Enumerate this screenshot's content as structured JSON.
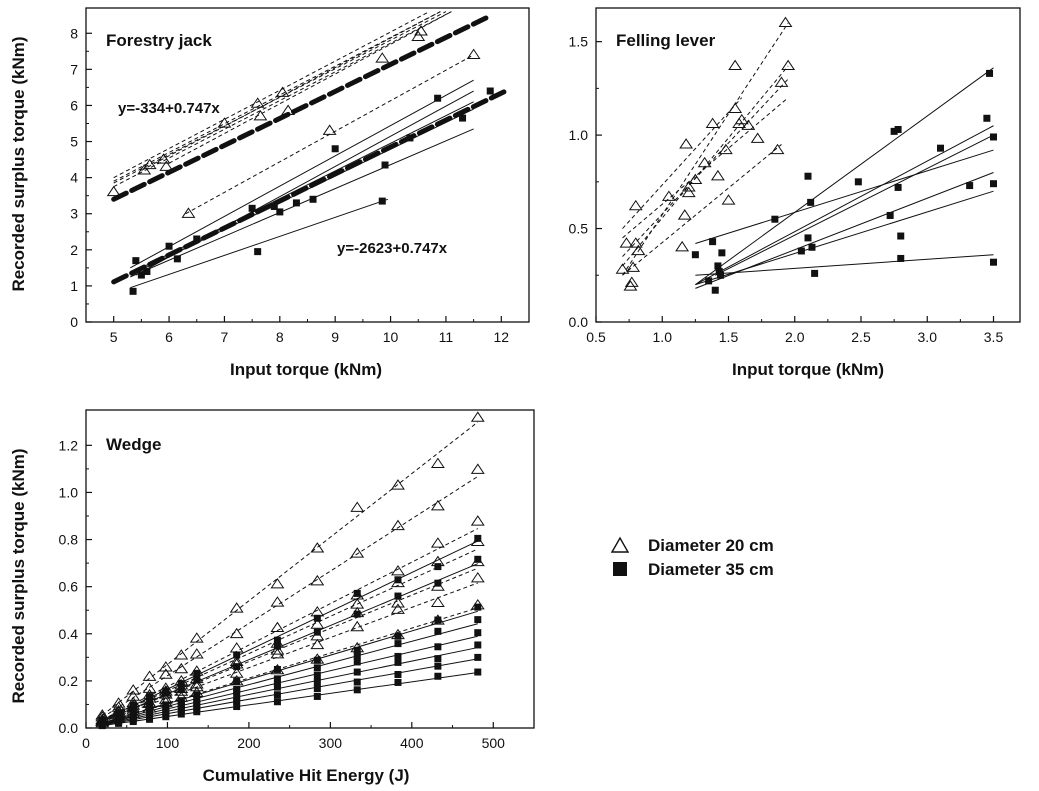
{
  "chart_data": [
    {
      "type": "scatter",
      "title": "Forestry jack",
      "xlabel": "Input torque (kNm)",
      "ylabel": "Recorded surplus torque (kNm)",
      "xlim": [
        4.5,
        12.5
      ],
      "ylim": [
        0,
        8.7
      ],
      "xticks": [
        "5",
        "6",
        "7",
        "8",
        "9",
        "10",
        "11",
        "12"
      ],
      "yticks": [
        "0",
        "1",
        "2",
        "3",
        "4",
        "5",
        "6",
        "7",
        "8"
      ],
      "annotations": [
        {
          "text": "y=-334+0.747x",
          "x": 5.1,
          "y": 6.3
        },
        {
          "text": "y=-2623+0.747x",
          "x": 9.0,
          "y": 1.9
        }
      ],
      "series": [
        {
          "name": "Diameter 20 cm",
          "marker": "open-triangle",
          "points": [
            [
              5.0,
              3.6
            ],
            [
              5.55,
              4.2
            ],
            [
              5.65,
              4.35
            ],
            [
              5.9,
              4.5
            ],
            [
              5.95,
              4.3
            ],
            [
              6.35,
              3.0
            ],
            [
              7.0,
              5.5
            ],
            [
              7.6,
              6.05
            ],
            [
              7.65,
              5.7
            ],
            [
              8.05,
              6.35
            ],
            [
              8.15,
              5.85
            ],
            [
              8.9,
              5.3
            ],
            [
              9.85,
              7.3
            ],
            [
              10.5,
              7.9
            ],
            [
              10.55,
              8.05
            ],
            [
              11.5,
              7.4
            ]
          ],
          "fits": [
            [
              5.0,
              3.75,
              11.1,
              8.6
            ],
            [
              5.0,
              3.85,
              11.0,
              8.6
            ],
            [
              5.0,
              3.9,
              10.9,
              8.6
            ],
            [
              5.0,
              4.0,
              10.7,
              8.6
            ],
            [
              5.5,
              4.2,
              10.9,
              8.6
            ],
            [
              6.0,
              4.4,
              11.1,
              8.6
            ],
            [
              6.3,
              3.0,
              11.5,
              7.4
            ]
          ]
        },
        {
          "name": "Diameter 35 cm",
          "marker": "filled-square",
          "points": [
            [
              5.35,
              0.85
            ],
            [
              5.4,
              1.7
            ],
            [
              5.5,
              1.3
            ],
            [
              5.6,
              1.4
            ],
            [
              6.0,
              2.1
            ],
            [
              6.15,
              1.75
            ],
            [
              6.5,
              2.3
            ],
            [
              7.5,
              3.15
            ],
            [
              7.6,
              1.95
            ],
            [
              7.9,
              3.2
            ],
            [
              8.0,
              3.05
            ],
            [
              8.3,
              3.3
            ],
            [
              8.6,
              3.4
            ],
            [
              9.0,
              4.8
            ],
            [
              9.9,
              4.35
            ],
            [
              9.85,
              3.35
            ],
            [
              10.35,
              5.1
            ],
            [
              10.85,
              6.2
            ],
            [
              11.3,
              5.65
            ],
            [
              11.8,
              6.4
            ]
          ],
          "fits": [
            [
              5.3,
              0.95,
              9.95,
              3.4
            ],
            [
              5.3,
              1.25,
              11.5,
              5.35
            ],
            [
              5.3,
              1.3,
              11.5,
              5.9
            ],
            [
              5.3,
              1.35,
              11.5,
              6.1
            ],
            [
              5.3,
              1.5,
              11.5,
              6.7
            ],
            [
              5.4,
              1.3,
              11.5,
              6.4
            ]
          ]
        }
      ],
      "model_lines": [
        {
          "intercept_kNm": -0.334,
          "slope": 0.747,
          "x_range": [
            5.0,
            11.8
          ]
        },
        {
          "intercept_kNm": -2.623,
          "slope": 0.747,
          "x_range": [
            5.0,
            12.1
          ]
        }
      ]
    },
    {
      "type": "scatter",
      "title": "Felling lever",
      "xlabel": "Input torque (kNm)",
      "ylabel": "",
      "xlim": [
        0.5,
        3.7
      ],
      "ylim": [
        0,
        1.68
      ],
      "xticks": [
        "0.5",
        "1.0",
        "1.5",
        "2.0",
        "2.5",
        "3.0",
        "3.5"
      ],
      "yticks": [
        "0.0",
        "0.5",
        "1.0",
        "1.5"
      ],
      "series": [
        {
          "name": "Diameter 20 cm",
          "marker": "open-triangle",
          "points": [
            [
              0.7,
              0.28
            ],
            [
              0.73,
              0.42
            ],
            [
              0.76,
              0.19
            ],
            [
              0.77,
              0.21
            ],
            [
              0.78,
              0.29
            ],
            [
              0.8,
              0.62
            ],
            [
              0.8,
              0.42
            ],
            [
              0.82,
              0.38
            ],
            [
              1.05,
              0.67
            ],
            [
              1.15,
              0.4
            ],
            [
              1.17,
              0.57
            ],
            [
              1.18,
              0.95
            ],
            [
              1.2,
              0.72
            ],
            [
              1.2,
              0.69
            ],
            [
              1.25,
              0.76
            ],
            [
              1.32,
              0.85
            ],
            [
              1.38,
              1.06
            ],
            [
              1.42,
              0.78
            ],
            [
              1.48,
              0.92
            ],
            [
              1.5,
              0.65
            ],
            [
              1.55,
              1.37
            ],
            [
              1.55,
              1.14
            ],
            [
              1.58,
              1.06
            ],
            [
              1.6,
              1.08
            ],
            [
              1.65,
              1.05
            ],
            [
              1.72,
              0.98
            ],
            [
              1.87,
              0.92
            ],
            [
              1.9,
              1.28
            ],
            [
              1.93,
              1.6
            ],
            [
              1.95,
              1.37
            ]
          ],
          "fits": [
            [
              0.7,
              0.25,
              1.95,
              1.6
            ],
            [
              0.7,
              0.3,
              1.95,
              1.37
            ],
            [
              0.7,
              0.35,
              1.95,
              1.3
            ],
            [
              0.7,
              0.45,
              1.95,
              1.2
            ],
            [
              0.7,
              0.5,
              1.6,
              1.2
            ],
            [
              0.7,
              0.25,
              1.9,
              0.95
            ]
          ]
        },
        {
          "name": "Diameter 35 cm",
          "marker": "filled-square",
          "points": [
            [
              1.25,
              0.36
            ],
            [
              1.35,
              0.22
            ],
            [
              1.38,
              0.43
            ],
            [
              1.4,
              0.17
            ],
            [
              1.42,
              0.3
            ],
            [
              1.43,
              0.27
            ],
            [
              1.44,
              0.25
            ],
            [
              1.45,
              0.37
            ],
            [
              1.85,
              0.55
            ],
            [
              2.05,
              0.38
            ],
            [
              2.1,
              0.78
            ],
            [
              2.1,
              0.45
            ],
            [
              2.12,
              0.64
            ],
            [
              2.13,
              0.4
            ],
            [
              2.15,
              0.26
            ],
            [
              2.48,
              0.75
            ],
            [
              2.72,
              0.57
            ],
            [
              2.75,
              1.02
            ],
            [
              2.78,
              1.03
            ],
            [
              2.78,
              0.72
            ],
            [
              2.8,
              0.46
            ],
            [
              2.8,
              0.34
            ],
            [
              3.1,
              0.93
            ],
            [
              3.32,
              0.73
            ],
            [
              3.45,
              1.09
            ],
            [
              3.47,
              1.33
            ],
            [
              3.5,
              0.99
            ],
            [
              3.5,
              0.74
            ],
            [
              3.5,
              0.32
            ]
          ],
          "fits": [
            [
              1.25,
              0.2,
              3.5,
              1.36
            ],
            [
              1.25,
              0.2,
              3.5,
              1.05
            ],
            [
              1.25,
              0.18,
              3.5,
              0.8
            ],
            [
              1.25,
              0.2,
              3.5,
              0.7
            ],
            [
              1.25,
              0.42,
              3.5,
              0.92
            ],
            [
              1.25,
              0.25,
              3.5,
              0.36
            ],
            [
              1.4,
              0.25,
              3.5,
              1.0
            ]
          ]
        }
      ]
    },
    {
      "type": "scatter",
      "title": "Wedge",
      "xlabel": "Cumulative Hit Energy (J)",
      "ylabel": "Recorded surplus torque (kNm)",
      "xlim": [
        0,
        550
      ],
      "ylim": [
        0,
        1.35
      ],
      "xticks": [
        "0",
        "100",
        "200",
        "300",
        "400",
        "500"
      ],
      "yticks": [
        "0.0",
        "0.2",
        "0.4",
        "0.6",
        "0.8",
        "1.0",
        "1.2"
      ],
      "x_levels": [
        20,
        40,
        58,
        78,
        98,
        117,
        136,
        185,
        235,
        284,
        333,
        383,
        432,
        481
      ],
      "series": [
        {
          "name": "Diameter 20 cm",
          "marker": "open-triangle",
          "line_slopes": [
            0.0027,
            0.00222,
            0.00176,
            0.00158,
            0.00141,
            0.00128,
            0.00106
          ]
        },
        {
          "name": "Diameter 35 cm",
          "marker": "filled-square",
          "line_slopes": [
            0.00165,
            0.00145,
            0.00103,
            0.00092,
            0.00081,
            0.00071,
            0.00061,
            0.00049
          ]
        }
      ]
    }
  ],
  "legend": {
    "items": [
      {
        "label": "Diameter 20 cm",
        "marker": "open-triangle"
      },
      {
        "label": "Diameter 35 cm",
        "marker": "filled-square"
      }
    ]
  }
}
